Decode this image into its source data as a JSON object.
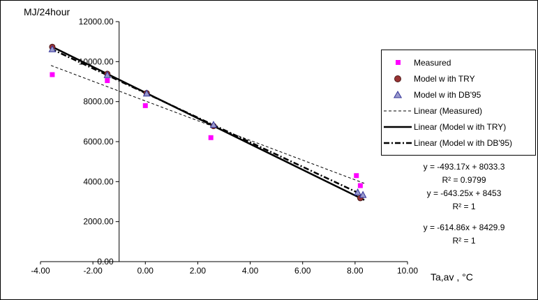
{
  "chart_data": {
    "type": "scatter",
    "ylabel": "MJ/24hour",
    "xlabel": "Ta,av , °C",
    "xlim": [
      -4,
      10
    ],
    "ylim": [
      0,
      12000
    ],
    "y_axis_cross_x": -1.0,
    "grid": false,
    "legend_position": "right",
    "xticks": {
      "values": [
        -4,
        -2,
        0,
        2,
        4,
        6,
        8,
        10
      ],
      "labels": [
        "-4.00",
        "-2.00",
        "0.00",
        "2.00",
        "4.00",
        "6.00",
        "8.00",
        "10.00"
      ]
    },
    "yticks": {
      "values": [
        0,
        2000,
        4000,
        6000,
        8000,
        10000,
        12000
      ],
      "labels": [
        "0.00",
        "2000.00",
        "4000.00",
        "6000.00",
        "8000.00",
        "10000.00",
        "12000.00"
      ]
    },
    "series": [
      {
        "name": "Measured",
        "marker": "square",
        "color": "#FF00FF",
        "edge": "#FF00FF",
        "points": [
          [
            -3.55,
            9350
          ],
          [
            -1.45,
            9050
          ],
          [
            0.0,
            7800
          ],
          [
            2.5,
            6200
          ],
          [
            8.05,
            4300
          ],
          [
            8.2,
            3800
          ]
        ]
      },
      {
        "name": "Model with TRY",
        "marker": "circle",
        "color": "#993333",
        "edge": "#4C1A1A",
        "points": [
          [
            -3.55,
            10737
          ],
          [
            -1.45,
            9386
          ],
          [
            0.05,
            8421
          ],
          [
            2.6,
            6781
          ],
          [
            8.2,
            3178
          ]
        ]
      },
      {
        "name": "Model with DB'95",
        "marker": "triangle",
        "color": "#9999CC",
        "edge": "#333399",
        "points": [
          [
            -3.55,
            10613
          ],
          [
            -1.45,
            9321
          ],
          [
            0.05,
            8399
          ],
          [
            2.6,
            6831
          ],
          [
            8.1,
            3450
          ],
          [
            8.3,
            3327
          ]
        ]
      }
    ],
    "trendlines": [
      {
        "name": "Linear (Measured)",
        "slope": -493.17,
        "intercept": 8033.3,
        "r2": 0.9799,
        "style": "dashed",
        "width": 1,
        "x_range": [
          -3.6,
          8.35
        ]
      },
      {
        "name": "Linear (Model with TRY)",
        "slope": -643.25,
        "intercept": 8453,
        "r2": 1,
        "style": "solid",
        "width": 2.5,
        "x_range": [
          -3.6,
          8.35
        ]
      },
      {
        "name": "Linear (Model with DB'95)",
        "slope": -614.86,
        "intercept": 8429.9,
        "r2": 1,
        "style": "dashdot",
        "width": 2.5,
        "x_range": [
          -3.6,
          8.35
        ]
      }
    ]
  },
  "legend": {
    "items": [
      {
        "label": "Measured"
      },
      {
        "label": "Model w ith TRY"
      },
      {
        "label": "Model w ith DB'95"
      },
      {
        "label": "Linear (Measured)"
      },
      {
        "label": "Linear (Model w ith TRY)"
      },
      {
        "label": "Linear (Model w ith DB'95)"
      }
    ]
  },
  "equations": [
    {
      "formula": "y = -493.17x + 8033.3",
      "r2": "R² = 0.9799"
    },
    {
      "formula": "y = -643.25x + 8453",
      "r2": "R² = 1"
    },
    {
      "formula": "y = -614.86x + 8429.9",
      "r2": "R² = 1"
    }
  ]
}
